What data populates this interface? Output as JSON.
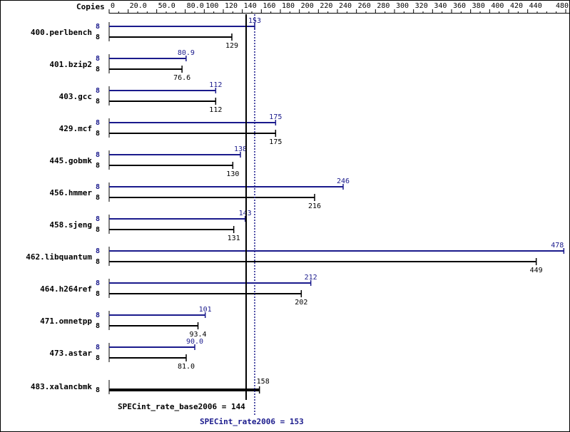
{
  "chart_data": {
    "type": "bar",
    "orientation": "horizontal",
    "header_label": "Copies",
    "xlim": [
      0,
      480
    ],
    "ticks": [
      {
        "v": 0,
        "label": "0"
      },
      {
        "v": 20,
        "label": "20.0"
      },
      {
        "v": 50,
        "label": "50.0"
      },
      {
        "v": 80,
        "label": "80.0"
      },
      {
        "v": 100,
        "label": "100"
      },
      {
        "v": 120,
        "label": "120"
      },
      {
        "v": 140,
        "label": "140"
      },
      {
        "v": 160,
        "label": "160"
      },
      {
        "v": 180,
        "label": "180"
      },
      {
        "v": 200,
        "label": "200"
      },
      {
        "v": 220,
        "label": "220"
      },
      {
        "v": 240,
        "label": "240"
      },
      {
        "v": 260,
        "label": "260"
      },
      {
        "v": 280,
        "label": "280"
      },
      {
        "v": 300,
        "label": "300"
      },
      {
        "v": 320,
        "label": "320"
      },
      {
        "v": 340,
        "label": "340"
      },
      {
        "v": 360,
        "label": "360"
      },
      {
        "v": 380,
        "label": "380"
      },
      {
        "v": 400,
        "label": "400"
      },
      {
        "v": 420,
        "label": "420"
      },
      {
        "v": 440,
        "label": "440"
      },
      {
        "v": 480,
        "label": "480"
      }
    ],
    "categories": [
      "400.perlbench",
      "401.bzip2",
      "403.gcc",
      "429.mcf",
      "445.gobmk",
      "456.hmmer",
      "458.sjeng",
      "462.libquantum",
      "464.h264ref",
      "471.omnetpp",
      "473.astar",
      "483.xalancbmk"
    ],
    "series": [
      {
        "name": "peak",
        "copies": [
          "8",
          "8",
          "8",
          "8",
          "8",
          "8",
          "8",
          "8",
          "8",
          "8",
          "8",
          ""
        ],
        "values": [
          153,
          80.9,
          112,
          175,
          138,
          246,
          143,
          478,
          212,
          101,
          90.0,
          null
        ],
        "labels": [
          "153",
          "80.9",
          "112",
          "175",
          "138",
          "246",
          "143",
          "478",
          "212",
          "101",
          "90.0",
          ""
        ]
      },
      {
        "name": "base",
        "copies": [
          "8",
          "8",
          "8",
          "8",
          "8",
          "8",
          "8",
          "8",
          "8",
          "8",
          "8",
          "8"
        ],
        "values": [
          129,
          76.6,
          112,
          175,
          130,
          216,
          131,
          449,
          202,
          93.4,
          81.0,
          158
        ],
        "labels": [
          "129",
          "76.6",
          "112",
          "175",
          "130",
          "216",
          "131",
          "449",
          "202",
          "93.4",
          "81.0",
          "158"
        ]
      }
    ],
    "summary": {
      "base_label": "SPECint_rate_base2006 = 144",
      "base_value": 144,
      "peak_label": "SPECint_rate2006 = 153",
      "peak_value": 153
    },
    "colors": {
      "peak": "#1a1a8c",
      "base": "#000000"
    }
  }
}
